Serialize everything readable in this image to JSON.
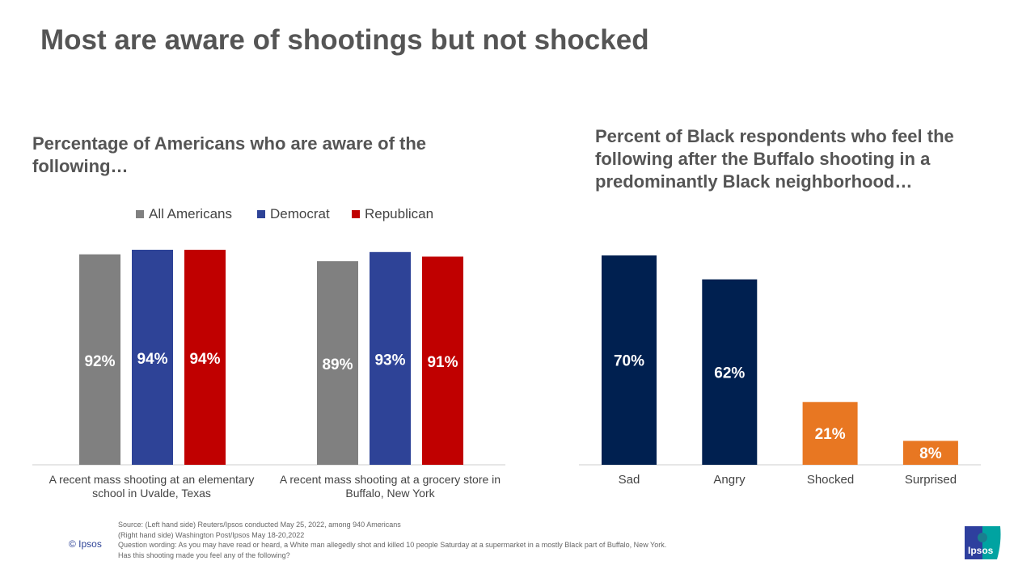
{
  "title": "Most are aware of shootings but not shocked",
  "chart_data": [
    {
      "type": "bar",
      "title": "Percentage of Americans who are aware of the following…",
      "categories": [
        "A recent mass shooting at an elementary school in Uvalde, Texas",
        "A recent mass shooting at a grocery store in Buffalo, New York"
      ],
      "series": [
        {
          "name": "All Americans",
          "values": [
            92,
            89
          ],
          "labels": [
            "92%",
            "89%"
          ],
          "color": "#808080"
        },
        {
          "name": "Democrat",
          "values": [
            94,
            93
          ],
          "labels": [
            "94%",
            "93%"
          ],
          "color": "#2E4397"
        },
        {
          "name": "Republican",
          "values": [
            94,
            91
          ],
          "labels": [
            "94%",
            "91%"
          ],
          "color": "#C00000"
        }
      ],
      "ylim": [
        0,
        100
      ],
      "legend": "top",
      "grid": false
    },
    {
      "type": "bar",
      "title": "Percent of Black respondents who feel the following after the Buffalo shooting in a predominantly Black neighborhood…",
      "categories": [
        "Sad",
        "Angry",
        "Shocked",
        "Surprised"
      ],
      "values": [
        70,
        62,
        21,
        8
      ],
      "labels": [
        "70%",
        "62%",
        "21%",
        "8%"
      ],
      "colors": [
        "#002050",
        "#002050",
        "#E87722",
        "#E87722"
      ],
      "ylim": [
        0,
        70
      ],
      "grid": false
    }
  ],
  "footer": {
    "source_lines": [
      "Source: (Left hand side) Reuters/Ipsos conducted May 25, 2022, among 940 Americans",
      "(Right hand side) Washington Post/Ipsos May 18-20,2022",
      "Question wording: As you may have read or heard, a White man allegedly shot and killed 10 people Saturday at a supermarket in a mostly Black part of Buffalo, New York.",
      "Has this shooting made you feel any of the following?"
    ],
    "copyright": "© Ipsos",
    "logo_text": "Ipsos"
  }
}
